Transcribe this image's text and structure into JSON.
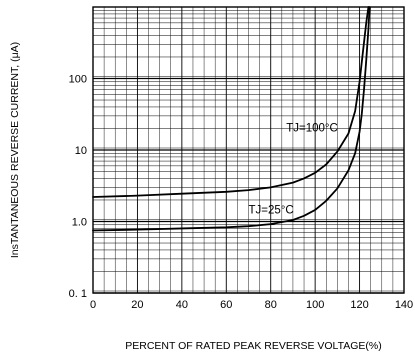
{
  "chart_data": {
    "type": "line",
    "xlabel": "PERCENT OF RATED PEAK REVERSE VOLTAGE(%)",
    "ylabel": "InsTANTANEOUS REVERSE CURRENT, (μA)",
    "xlim": [
      0,
      140
    ],
    "ylim": [
      0.1,
      1000
    ],
    "y_scale": "log",
    "grid": true,
    "x_ticks": [
      0,
      20,
      40,
      60,
      80,
      100,
      120,
      140
    ],
    "x_tick_labels": [
      "0",
      "20",
      "40",
      "60",
      "80",
      "100",
      "120",
      "140"
    ],
    "y_ticks": [
      0.1,
      1,
      10,
      100
    ],
    "y_tick_labels": [
      "0. 1",
      "1.0",
      "10",
      "100"
    ],
    "series": [
      {
        "name": "TJ=100°C",
        "x": [
          0,
          20,
          40,
          60,
          70,
          80,
          90,
          95,
          100,
          105,
          110,
          115,
          118,
          120,
          121,
          122,
          123,
          124
        ],
        "y": [
          2.2,
          2.3,
          2.45,
          2.6,
          2.75,
          3.0,
          3.5,
          4.0,
          4.8,
          6.3,
          9.5,
          17,
          35,
          90,
          170,
          320,
          600,
          1000
        ]
      },
      {
        "name": "TJ=25°C",
        "x": [
          0,
          20,
          40,
          60,
          70,
          80,
          90,
          95,
          100,
          105,
          110,
          115,
          118,
          120,
          121,
          122,
          123,
          124,
          124.5
        ],
        "y": [
          0.75,
          0.77,
          0.8,
          0.83,
          0.86,
          0.92,
          1.05,
          1.2,
          1.45,
          1.95,
          2.9,
          5.2,
          9,
          18,
          32,
          70,
          180,
          500,
          1000
        ]
      }
    ],
    "annotations": [
      {
        "text": "TJ=100°C",
        "x": 87,
        "y": 18
      },
      {
        "text": "TJ=25°C",
        "x": 70,
        "y": 1.3
      }
    ]
  }
}
